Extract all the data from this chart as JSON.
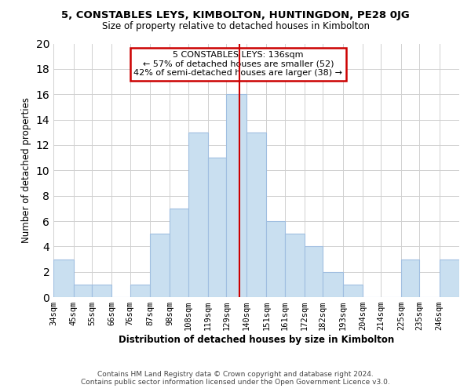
{
  "title": "5, CONSTABLES LEYS, KIMBOLTON, HUNTINGDON, PE28 0JG",
  "subtitle": "Size of property relative to detached houses in Kimbolton",
  "xlabel": "Distribution of detached houses by size in Kimbolton",
  "ylabel": "Number of detached properties",
  "bin_labels": [
    "34sqm",
    "45sqm",
    "55sqm",
    "66sqm",
    "76sqm",
    "87sqm",
    "98sqm",
    "108sqm",
    "119sqm",
    "129sqm",
    "140sqm",
    "151sqm",
    "161sqm",
    "172sqm",
    "182sqm",
    "193sqm",
    "204sqm",
    "214sqm",
    "225sqm",
    "235sqm",
    "246sqm"
  ],
  "bin_edges": [
    34,
    45,
    55,
    66,
    76,
    87,
    98,
    108,
    119,
    129,
    140,
    151,
    161,
    172,
    182,
    193,
    204,
    214,
    225,
    235,
    246
  ],
  "counts": [
    3,
    1,
    1,
    0,
    1,
    5,
    7,
    13,
    11,
    16,
    13,
    6,
    5,
    4,
    2,
    1,
    0,
    0,
    3,
    0,
    3
  ],
  "bar_color": "#c9dff0",
  "bar_edge_color": "#a0bee0",
  "reference_line_x": 136,
  "reference_line_color": "#cc0000",
  "ylim": [
    0,
    20
  ],
  "yticks": [
    0,
    2,
    4,
    6,
    8,
    10,
    12,
    14,
    16,
    18,
    20
  ],
  "annotation_title": "5 CONSTABLES LEYS: 136sqm",
  "annotation_line1": "← 57% of detached houses are smaller (52)",
  "annotation_line2": "42% of semi-detached houses are larger (38) →",
  "annotation_box_color": "#ffffff",
  "annotation_box_edge": "#cc0000",
  "footer1": "Contains HM Land Registry data © Crown copyright and database right 2024.",
  "footer2": "Contains public sector information licensed under the Open Government Licence v3.0.",
  "background_color": "#ffffff",
  "grid_color": "#d0d0d0"
}
